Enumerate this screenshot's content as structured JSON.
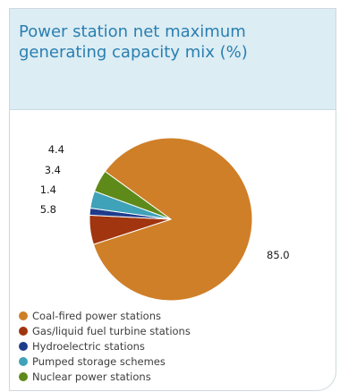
{
  "chart_data": {
    "type": "pie",
    "title": "Power station net maximum generating capacity mix (%)",
    "legend_position": "bottom-left",
    "slices": [
      {
        "label": "Coal-fired power stations",
        "value": 85.0,
        "value_label": "85.0",
        "color": "#cf7f28"
      },
      {
        "label": "Gas/liquid fuel turbine stations",
        "value": 5.8,
        "value_label": "5.8",
        "color": "#a0350f"
      },
      {
        "label": "Hydroelectric stations",
        "value": 1.4,
        "value_label": "1.4",
        "color": "#1f3c8c"
      },
      {
        "label": "Pumped storage schemes",
        "value": 3.4,
        "value_label": "3.4",
        "color": "#3fa2b8"
      },
      {
        "label": "Nuclear power stations",
        "value": 4.4,
        "value_label": "4.4",
        "color": "#5e8a1a"
      }
    ]
  }
}
